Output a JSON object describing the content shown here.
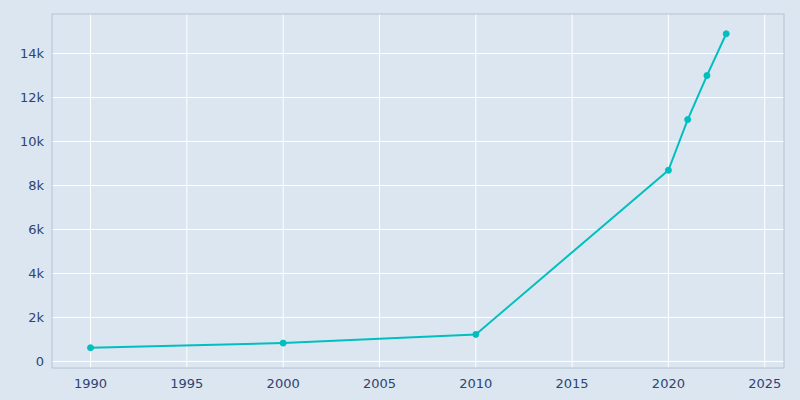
{
  "chart_data": {
    "type": "line",
    "x": [
      1990,
      2000,
      2010,
      2020,
      2021,
      2022,
      2023
    ],
    "values": [
      621,
      833,
      1228,
      8693,
      11000,
      13000,
      14900
    ],
    "color": "#00BFBF",
    "marker": "circle",
    "xlim": [
      1988,
      2026
    ],
    "ylim": [
      -300,
      15800
    ],
    "xticks": [
      1990,
      1995,
      2000,
      2005,
      2010,
      2015,
      2020,
      2025
    ],
    "yticks": [
      0,
      {
        "value": 2000,
        "label": "2k"
      },
      {
        "value": 4000,
        "label": "4k"
      },
      {
        "value": 6000,
        "label": "6k"
      },
      {
        "value": 8000,
        "label": "8k"
      },
      {
        "value": 10000,
        "label": "10k"
      },
      {
        "value": 12000,
        "label": "12k"
      },
      {
        "value": 14000,
        "label": "14k"
      }
    ],
    "grid": true
  }
}
